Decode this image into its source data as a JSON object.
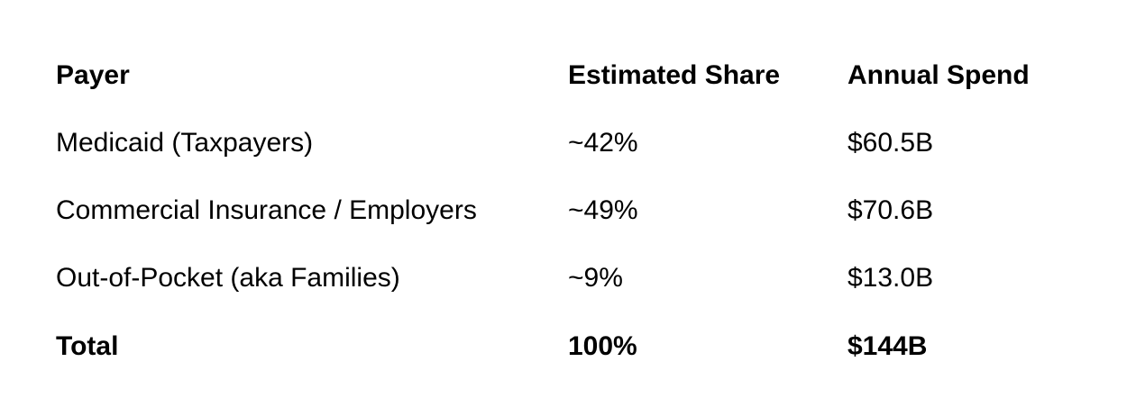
{
  "table": {
    "header": [
      "Payer",
      "Estimated Share",
      "Annual Spend"
    ],
    "rows": [
      [
        "Medicaid (Taxpayers)",
        "~42%",
        "$60.5B"
      ],
      [
        "Commercial Insurance / Employers",
        "~49%",
        "$70.6B"
      ],
      [
        "Out-of-Pocket (aka Families)",
        "~9%",
        "$13.0B"
      ]
    ],
    "total": [
      "Total",
      "100%",
      "$144B"
    ]
  }
}
